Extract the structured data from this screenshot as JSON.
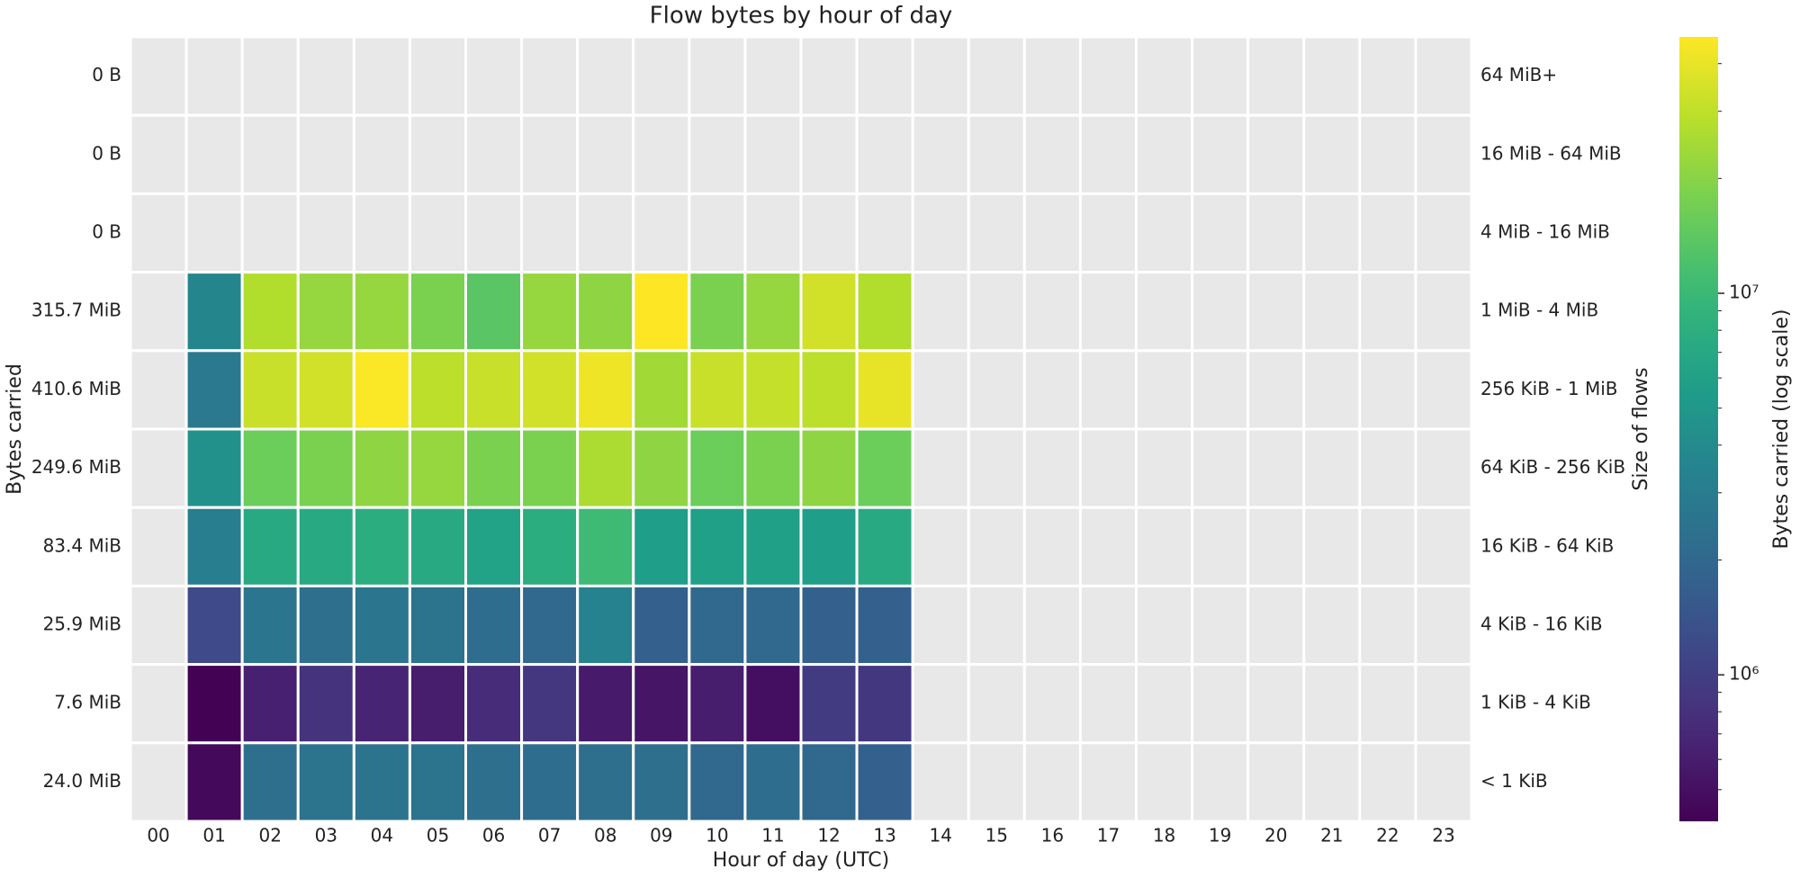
{
  "chart_data": {
    "type": "heatmap",
    "title": "Flow bytes by hour of day",
    "x_label": "Hour of day (UTC)",
    "y_label": "Bytes carried",
    "y2_label": "Size of flows",
    "colorbar_label": "Bytes carried (log scale)",
    "categories": [
      "00",
      "01",
      "02",
      "03",
      "04",
      "05",
      "06",
      "07",
      "08",
      "09",
      "10",
      "11",
      "12",
      "13",
      "14",
      "15",
      "16",
      "17",
      "18",
      "19",
      "20",
      "21",
      "22",
      "23"
    ],
    "y_categories": [
      "64 MiB+",
      "16 MiB - 64 MiB",
      "4 MiB - 16 MiB",
      "1 MiB - 4 MiB",
      "256 KiB - 1 MiB",
      "64 KiB - 256 KiB",
      "16 KiB - 64 KiB",
      "4 KiB - 16 KiB",
      "1 KiB - 4 KiB",
      "< 1 KiB"
    ],
    "row_totals": [
      "0 B",
      "0 B",
      "0 B",
      "315.7 MiB",
      "410.6 MiB",
      "249.6 MiB",
      "83.4 MiB",
      "25.9 MiB",
      "7.6 MiB",
      "24.0 MiB"
    ],
    "z": [
      [
        null,
        null,
        null,
        null,
        null,
        null,
        null,
        null,
        null,
        null,
        null,
        null,
        null,
        null,
        null,
        null,
        null,
        null,
        null,
        null,
        null,
        null,
        null,
        null
      ],
      [
        null,
        null,
        null,
        null,
        null,
        null,
        null,
        null,
        null,
        null,
        null,
        null,
        null,
        null,
        null,
        null,
        null,
        null,
        null,
        null,
        null,
        null,
        null,
        null
      ],
      [
        null,
        null,
        null,
        null,
        null,
        null,
        null,
        null,
        null,
        null,
        null,
        null,
        null,
        null,
        null,
        null,
        null,
        null,
        null,
        null,
        null,
        null,
        null,
        null
      ],
      [
        null,
        3600000,
        27000000,
        22000000,
        22000000,
        18000000,
        13500000,
        22000000,
        21000000,
        47000000,
        18000000,
        22000000,
        34000000,
        27000000,
        null,
        null,
        null,
        null,
        null,
        null,
        null,
        null,
        null,
        null
      ],
      [
        null,
        2800000,
        32000000,
        34000000,
        46000000,
        29000000,
        32000000,
        34000000,
        42000000,
        24000000,
        32000000,
        31000000,
        29000000,
        40000000,
        null,
        null,
        null,
        null,
        null,
        null,
        null,
        null,
        null,
        null
      ],
      [
        null,
        4500000,
        16000000,
        18000000,
        21000000,
        22000000,
        18000000,
        18000000,
        26000000,
        21000000,
        16000000,
        18000000,
        21000000,
        16000000,
        null,
        null,
        null,
        null,
        null,
        null,
        null,
        null,
        null,
        null
      ],
      [
        null,
        3100000,
        7200000,
        7200000,
        7900000,
        7200000,
        6200000,
        7900000,
        10500000,
        5700000,
        6000000,
        6000000,
        5700000,
        7200000,
        null,
        null,
        null,
        null,
        null,
        null,
        null,
        null,
        null,
        null
      ],
      [
        null,
        1200000,
        2600000,
        2300000,
        2600000,
        2500000,
        2200000,
        2000000,
        3400000,
        1760000,
        2000000,
        2000000,
        1760000,
        1760000,
        null,
        null,
        null,
        null,
        null,
        null,
        null,
        null,
        null,
        null
      ],
      [
        null,
        420000,
        630000,
        830000,
        660000,
        600000,
        750000,
        870000,
        580000,
        540000,
        600000,
        500000,
        950000,
        900000,
        null,
        null,
        null,
        null,
        null,
        null,
        null,
        null,
        null,
        null
      ],
      [
        null,
        460000,
        2300000,
        2500000,
        2500000,
        2500000,
        2300000,
        2200000,
        2300000,
        2300000,
        2000000,
        2200000,
        2000000,
        1760000,
        null,
        null,
        null,
        null,
        null,
        null,
        null,
        null,
        null,
        null
      ]
    ],
    "zlim": [
      413000,
      47000000
    ],
    "log_scale": true,
    "colormap": "viridis",
    "missing_color": "#e8e8e8",
    "colorbar_ticks": [
      {
        "value": 1000000,
        "label": "10⁶"
      },
      {
        "value": 10000000,
        "label": "10⁷"
      }
    ],
    "colorbar_minor_ticks": [
      500000,
      600000,
      700000,
      800000,
      900000,
      2000000,
      3000000,
      4000000,
      5000000,
      6000000,
      7000000,
      8000000,
      9000000,
      20000000,
      30000000,
      40000000
    ]
  }
}
